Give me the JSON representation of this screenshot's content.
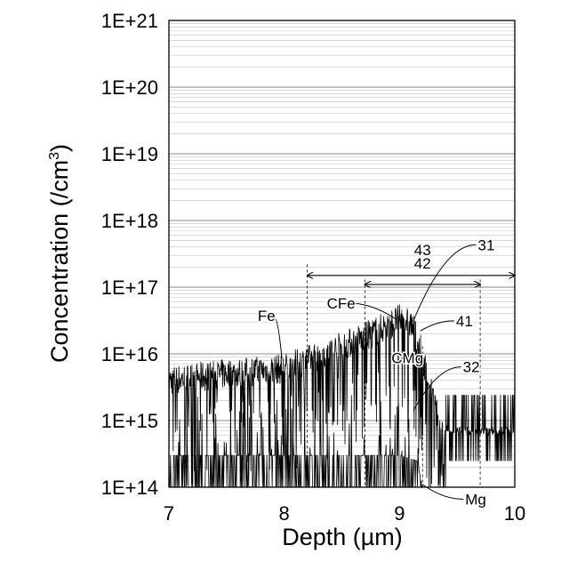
{
  "chart_data": {
    "type": "line",
    "title": "",
    "xlabel": "Depth (µm)",
    "ylabel": "Concentration (/cm³)",
    "ylabel_main": "Concentration (/cm",
    "ylabel_sup": "3",
    "ylabel_close": ")",
    "xlim": [
      7,
      10
    ],
    "ylim": [
      100000000000000.0,
      1e+21
    ],
    "yscale": "log",
    "grid": "minor and major horizontal gridlines",
    "x_ticks": [
      "7",
      "8",
      "9",
      "10"
    ],
    "x_tick_values": [
      7,
      8,
      9,
      10
    ],
    "y_ticks": [
      "1E+14",
      "1E+15",
      "1E+16",
      "1E+17",
      "1E+18",
      "1E+19",
      "1E+20",
      "1E+21"
    ],
    "y_tick_values": [
      100000000000000.0,
      1000000000000000.0,
      1e+16,
      1e+17,
      1e+18,
      1e+19,
      1e+20,
      1e+21
    ],
    "series": [
      {
        "name": "Fe",
        "color": "#000000",
        "profile_x": [
          7.0,
          7.5,
          8.0,
          8.2,
          8.5,
          8.7,
          8.9,
          9.0,
          9.05,
          9.1,
          9.15,
          9.2,
          9.25,
          9.3,
          9.35,
          9.5,
          9.8,
          10.0
        ],
        "profile_y": [
          4000000000000000.0,
          5000000000000000.0,
          6000000000000000.0,
          8000000000000000.0,
          1.3e+16,
          1.8e+16,
          2.7e+16,
          3.3e+16,
          3.2e+16,
          2.8e+16,
          1.8e+16,
          9000000000000000.0,
          4000000000000000.0,
          1800000000000000.0,
          800000000000000.0,
          700000000000000.0,
          700000000000000.0,
          700000000000000.0
        ]
      },
      {
        "name": "Mg",
        "color": "#000000",
        "profile_x": [
          7.0,
          8.0,
          9.0,
          9.15,
          9.2,
          10.0
        ],
        "profile_y": [
          300000000000000.0,
          300000000000000.0,
          300000000000000.0,
          250000000000000.0,
          100000000000000.0,
          100000000000000.0
        ]
      }
    ],
    "vlines": [
      {
        "x": 8.2,
        "y_top": 2.2e+17
      },
      {
        "x": 8.7,
        "y_top": 1.3e+17
      },
      {
        "x": 9.2,
        "y_top": 1.3e+16
      },
      {
        "x": 9.7,
        "y_top": 1.3e+17
      }
    ],
    "annotations": [
      {
        "text": "43",
        "kind": "dimension",
        "x1": 8.2,
        "x2": 10.0,
        "y": 1.5e+17,
        "label_x": 9.2,
        "label_y": 3e+17
      },
      {
        "text": "42",
        "kind": "dimension",
        "x1": 8.7,
        "x2": 9.7,
        "y": 1.1e+17,
        "label_x": 9.2,
        "label_y": 1.9e+17
      },
      {
        "text": "31",
        "kind": "leader",
        "label_x": 9.68,
        "label_y": 3.6e+17,
        "tx": 9.12,
        "ty": 3.1e+16
      },
      {
        "text": "CFe",
        "kind": "leader",
        "label_x": 8.37,
        "label_y": 4.8e+16,
        "tx": 8.97,
        "ty": 3.3e+16
      },
      {
        "text": "41",
        "kind": "leader",
        "label_x": 9.49,
        "label_y": 2.6e+16,
        "tx": 9.18,
        "ty": 2.2e+16
      },
      {
        "text": "Fe",
        "kind": "leader",
        "label_x": 7.77,
        "label_y": 3.1e+16,
        "tx": 7.98,
        "ty": 8500000000000000.0
      },
      {
        "text": "CMg",
        "kind": "leader",
        "label_x": 8.93,
        "label_y": 7200000000000000.0,
        "tx": 9.12,
        "ty": 2800000000000000.0
      },
      {
        "text": "32",
        "kind": "leader",
        "label_x": 9.55,
        "label_y": 5300000000000000.0,
        "tx": 9.12,
        "ty": 1400000000000000.0
      },
      {
        "text": "Mg",
        "kind": "leader",
        "label_x": 9.57,
        "label_y": 55000000000000.0,
        "tx": 9.2,
        "ty": 110000000000000.0
      }
    ]
  }
}
